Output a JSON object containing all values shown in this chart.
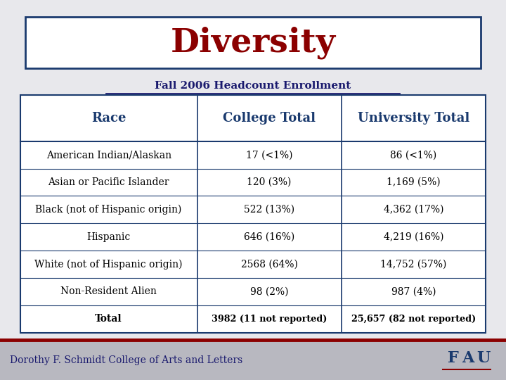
{
  "title": "Diversity",
  "subtitle": "Fall 2006 Headcount Enrollment",
  "title_color": "#8B0000",
  "subtitle_color": "#1a1a6e",
  "header_color": "#1a3a6e",
  "bg_color": "#e8e8ec",
  "border_color": "#1a3a6e",
  "footer_text": "Dorothy F. Schmidt College of Arts and Letters",
  "footer_color": "#1a1a6e",
  "red_line_color": "#8B0000",
  "fau_color": "#1a3a6e",
  "columns": [
    "Race",
    "College Total",
    "University Total"
  ],
  "rows": [
    [
      "American Indian/Alaskan",
      "17 (<1%)",
      "86 (<1%)"
    ],
    [
      "Asian or Pacific Islander",
      "120 (3%)",
      "1,169 (5%)"
    ],
    [
      "Black (not of Hispanic origin)",
      "522 (13%)",
      "4,362 (17%)"
    ],
    [
      "Hispanic",
      "646 (16%)",
      "4,219 (16%)"
    ],
    [
      "White (not of Hispanic origin)",
      "2568 (64%)",
      "14,752 (57%)"
    ],
    [
      "Non-Resident Alien",
      "98 (2%)",
      "987 (4%)"
    ],
    [
      "Total",
      "3982 (11 not reported)",
      "25,657 (82 not reported)"
    ]
  ]
}
